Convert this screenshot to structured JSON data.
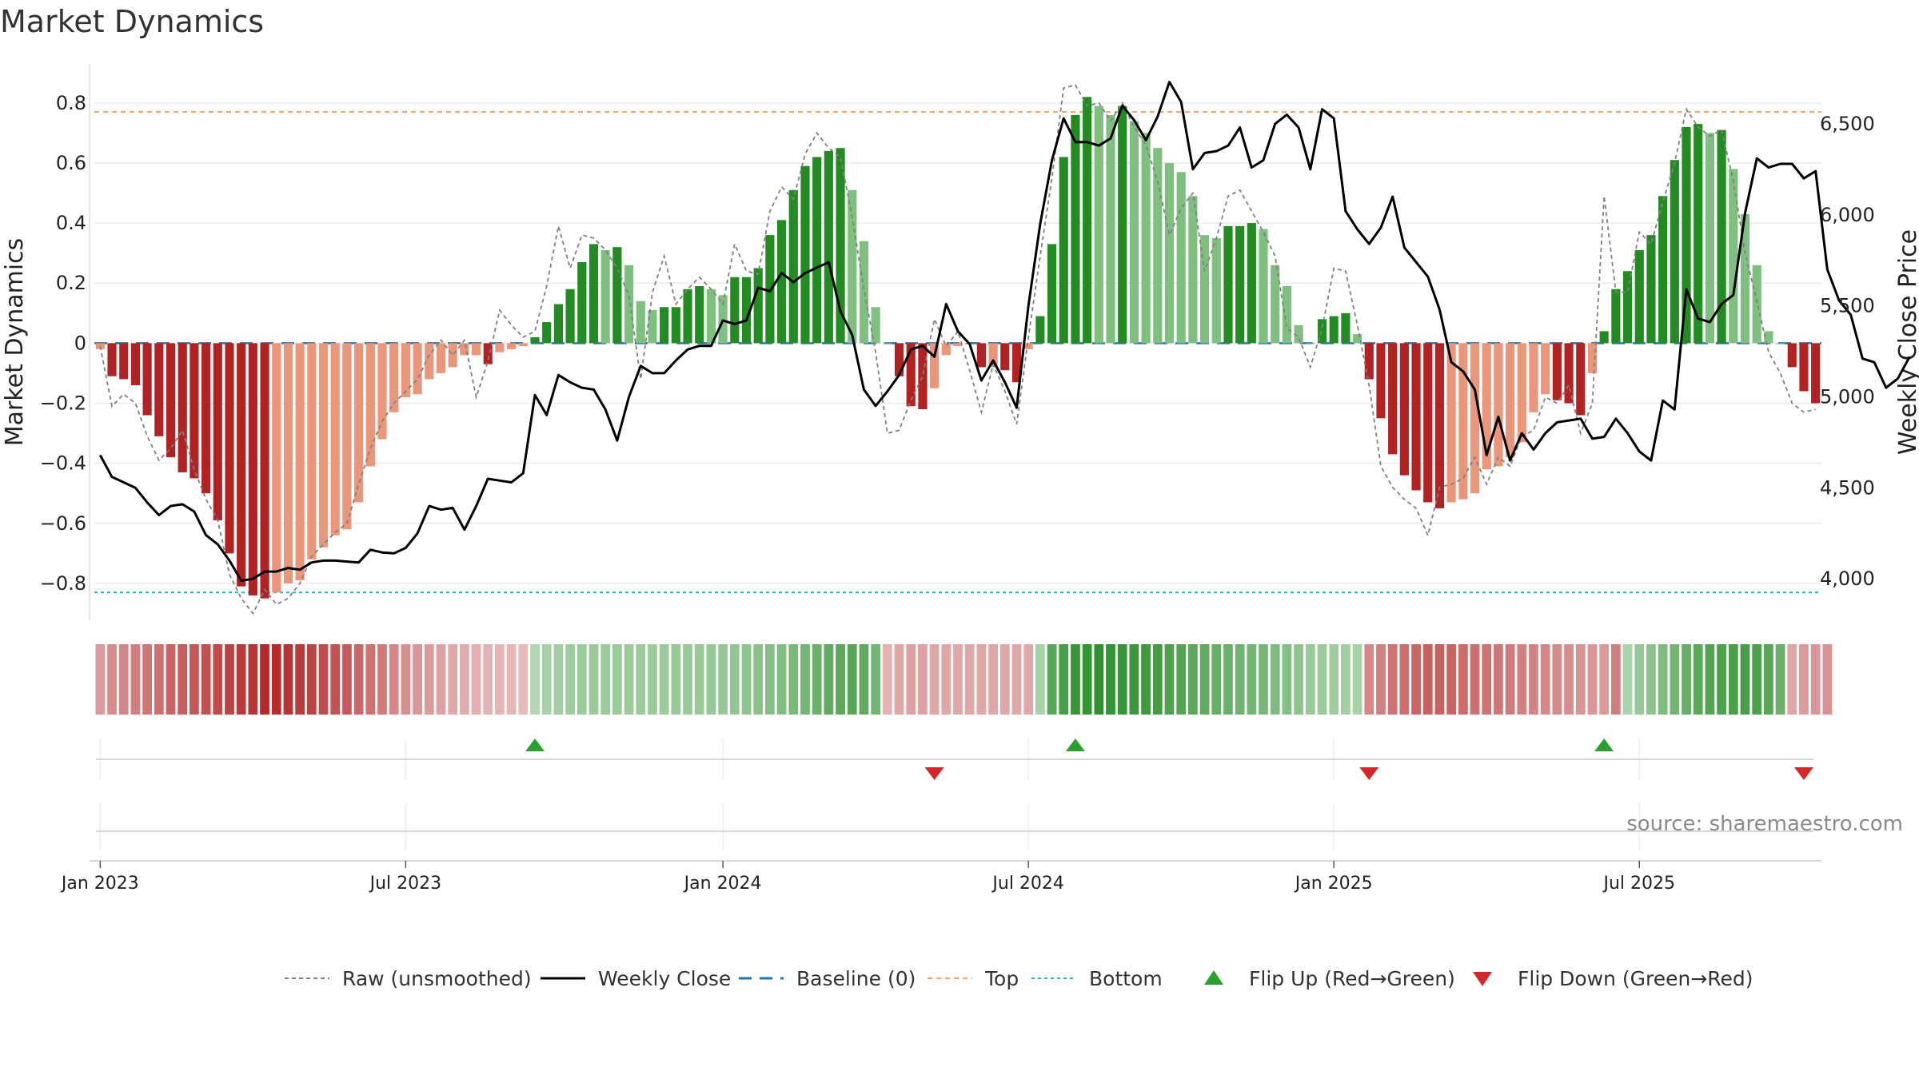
{
  "title": "Market Dynamics",
  "source_note": "source: sharemaestro.com",
  "colors": {
    "strong_green": "#228B22",
    "light_green": "#7FBF7F",
    "strong_red": "#B22222",
    "light_red": "#E9967A",
    "close_line": "#000000",
    "raw_line": "#808080",
    "baseline": "#1F77B4",
    "top": "#F4A460",
    "bottom": "#17BECF",
    "flip_up": "#2CA02C",
    "flip_down": "#D62728"
  },
  "chart_data": {
    "type": "bar",
    "title": "Market Dynamics",
    "xlabel": "",
    "ylabel": "Market Dynamics",
    "y2label": "Weekly Close Price",
    "x_tick_labels": [
      "Jan 2023",
      "Jul 2023",
      "Jan 2024",
      "Jul 2024",
      "Jan 2025",
      "Jul 2025"
    ],
    "y_tick_labels": [
      "−0.8",
      "−0.6",
      "−0.4",
      "−0.2",
      "0",
      "0.2",
      "0.4",
      "0.6",
      "0.8"
    ],
    "y2_tick_labels": [
      "4,000",
      "4,500",
      "5,000",
      "5,500",
      "6,000",
      "6,500"
    ],
    "ylim": [
      -0.92,
      0.93
    ],
    "y2lim": [
      3777,
      6829
    ],
    "top_level": 0.77,
    "bottom_level": -0.83,
    "baseline": 0,
    "dynamics": [
      -0.02,
      -0.11,
      -0.12,
      -0.14,
      -0.24,
      -0.31,
      -0.38,
      -0.43,
      -0.45,
      -0.5,
      -0.59,
      -0.7,
      -0.81,
      -0.84,
      -0.85,
      -0.83,
      -0.8,
      -0.79,
      -0.72,
      -0.68,
      -0.64,
      -0.62,
      -0.53,
      -0.41,
      -0.32,
      -0.23,
      -0.18,
      -0.17,
      -0.12,
      -0.1,
      -0.08,
      -0.04,
      -0.04,
      -0.07,
      -0.03,
      -0.02,
      -0.01,
      0.02,
      0.07,
      0.13,
      0.18,
      0.27,
      0.33,
      0.31,
      0.32,
      0.26,
      0.14,
      0.11,
      0.12,
      0.12,
      0.18,
      0.19,
      0.18,
      0.16,
      0.22,
      0.22,
      0.25,
      0.36,
      0.41,
      0.51,
      0.59,
      0.62,
      0.64,
      0.65,
      0.51,
      0.34,
      0.12,
      0.0,
      -0.11,
      -0.21,
      -0.22,
      -0.15,
      -0.04,
      -0.01,
      0.0,
      -0.08,
      -0.08,
      -0.09,
      -0.13,
      -0.02,
      0.09,
      0.33,
      0.62,
      0.76,
      0.82,
      0.79,
      0.76,
      0.79,
      0.74,
      0.7,
      0.65,
      0.6,
      0.57,
      0.49,
      0.36,
      0.35,
      0.39,
      0.39,
      0.4,
      0.38,
      0.26,
      0.19,
      0.06,
      0.0,
      0.08,
      0.09,
      0.1,
      0.03,
      -0.12,
      -0.25,
      -0.37,
      -0.44,
      -0.49,
      -0.53,
      -0.55,
      -0.53,
      -0.52,
      -0.5,
      -0.42,
      -0.41,
      -0.38,
      -0.33,
      -0.23,
      -0.17,
      -0.19,
      -0.2,
      -0.24,
      -0.1,
      0.04,
      0.18,
      0.24,
      0.31,
      0.36,
      0.49,
      0.61,
      0.72,
      0.73,
      0.7,
      0.71,
      0.58,
      0.43,
      0.26,
      0.04,
      0.0,
      -0.08,
      -0.16,
      -0.2
    ],
    "raw": [
      -0.01,
      -0.21,
      -0.17,
      -0.2,
      -0.31,
      -0.39,
      -0.35,
      -0.29,
      -0.42,
      -0.52,
      -0.59,
      -0.77,
      -0.85,
      -0.9,
      -0.82,
      -0.87,
      -0.85,
      -0.8,
      -0.71,
      -0.67,
      -0.63,
      -0.6,
      -0.47,
      -0.35,
      -0.26,
      -0.2,
      -0.16,
      -0.12,
      -0.04,
      0.01,
      -0.04,
      0.01,
      -0.18,
      -0.06,
      0.11,
      0.06,
      0.02,
      0.04,
      0.19,
      0.39,
      0.25,
      0.36,
      0.35,
      0.31,
      0.25,
      0.16,
      -0.12,
      0.17,
      0.29,
      0.13,
      0.18,
      0.22,
      0.18,
      0.13,
      0.33,
      0.24,
      0.23,
      0.44,
      0.52,
      0.48,
      0.63,
      0.7,
      0.65,
      0.62,
      0.42,
      0.18,
      -0.03,
      -0.3,
      -0.29,
      -0.19,
      -0.11,
      0.08,
      -0.01,
      0.04,
      -0.09,
      -0.23,
      -0.07,
      -0.16,
      -0.27,
      0.02,
      0.29,
      0.55,
      0.85,
      0.86,
      0.79,
      0.8,
      0.74,
      0.8,
      0.72,
      0.66,
      0.54,
      0.36,
      0.45,
      0.5,
      0.24,
      0.35,
      0.49,
      0.51,
      0.44,
      0.37,
      0.29,
      0.05,
      0.02,
      -0.08,
      0.05,
      0.25,
      0.24,
      0.06,
      -0.14,
      -0.41,
      -0.48,
      -0.52,
      -0.55,
      -0.64,
      -0.48,
      -0.47,
      -0.45,
      -0.38,
      -0.47,
      -0.38,
      -0.41,
      -0.31,
      -0.29,
      -0.18,
      -0.2,
      -0.14,
      -0.3,
      -0.2,
      0.49,
      0.17,
      0.17,
      0.37,
      0.33,
      0.47,
      0.6,
      0.78,
      0.72,
      0.69,
      0.71,
      0.54,
      0.3,
      0.14,
      -0.03,
      -0.1,
      -0.2,
      -0.23,
      -0.22
    ],
    "close": [
      4680,
      4560,
      4530,
      4500,
      4420,
      4350,
      4400,
      4410,
      4370,
      4240,
      4190,
      4100,
      3990,
      4000,
      4040,
      4040,
      4060,
      4050,
      4090,
      4100,
      4100,
      4095,
      4090,
      4160,
      4145,
      4140,
      4170,
      4250,
      4400,
      4380,
      4390,
      4270,
      4400,
      4550,
      4540,
      4530,
      4580,
      5010,
      4900,
      5120,
      5080,
      5050,
      5040,
      4930,
      4760,
      5000,
      5170,
      5130,
      5130,
      5200,
      5260,
      5280,
      5280,
      5420,
      5400,
      5420,
      5600,
      5580,
      5680,
      5630,
      5680,
      5710,
      5740,
      5470,
      5340,
      5040,
      4950,
      5030,
      5120,
      5260,
      5280,
      5220,
      5510,
      5360,
      5290,
      5090,
      5200,
      5080,
      4940,
      5500,
      5950,
      6300,
      6530,
      6400,
      6400,
      6380,
      6420,
      6600,
      6520,
      6410,
      6540,
      6730,
      6620,
      6250,
      6340,
      6350,
      6380,
      6480,
      6260,
      6300,
      6500,
      6550,
      6480,
      6250,
      6580,
      6530,
      6020,
      5920,
      5840,
      5930,
      6100,
      5820,
      5740,
      5660,
      5480,
      5190,
      5140,
      5040,
      4680,
      4890,
      4650,
      4800,
      4710,
      4800,
      4860,
      4870,
      4880,
      4770,
      4780,
      4880,
      4800,
      4700,
      4650,
      4980,
      4930,
      5590,
      5430,
      5410,
      5510,
      5560,
      6010,
      6310,
      6260,
      6280,
      6280,
      6200,
      6240,
      5700,
      5530,
      5450,
      5210,
      5190,
      5050,
      5100,
      5220
    ]
  },
  "regime_strip": {
    "label": "regime-strip",
    "values": [
      -0.25,
      -0.33,
      -0.35,
      -0.4,
      -0.44,
      -0.48,
      -0.53,
      -0.57,
      -0.6,
      -0.63,
      -0.67,
      -0.7,
      -0.74,
      -0.78,
      -0.82,
      -0.82,
      -0.78,
      -0.74,
      -0.7,
      -0.66,
      -0.62,
      -0.58,
      -0.52,
      -0.47,
      -0.42,
      -0.36,
      -0.32,
      -0.28,
      -0.25,
      -0.22,
      -0.2,
      -0.18,
      -0.16,
      -0.15,
      -0.13,
      -0.12,
      -0.1,
      0.15,
      0.2,
      0.22,
      0.24,
      0.25,
      0.25,
      0.25,
      0.25,
      0.26,
      0.26,
      0.26,
      0.26,
      0.27,
      0.27,
      0.27,
      0.28,
      0.29,
      0.3,
      0.32,
      0.34,
      0.36,
      0.39,
      0.42,
      0.46,
      0.5,
      0.55,
      0.58,
      0.6,
      0.55,
      0.45,
      -0.15,
      -0.2,
      -0.22,
      -0.22,
      -0.2,
      -0.2,
      -0.2,
      -0.2,
      -0.2,
      -0.2,
      -0.2,
      -0.2,
      -0.2,
      0.2,
      0.6,
      0.68,
      0.75,
      0.78,
      0.8,
      0.78,
      0.76,
      0.74,
      0.72,
      0.7,
      0.66,
      0.62,
      0.58,
      0.55,
      0.52,
      0.5,
      0.48,
      0.46,
      0.44,
      0.4,
      0.36,
      0.32,
      0.28,
      0.26,
      0.24,
      0.22,
      0.2,
      -0.35,
      -0.4,
      -0.45,
      -0.48,
      -0.52,
      -0.55,
      -0.55,
      -0.53,
      -0.5,
      -0.48,
      -0.46,
      -0.44,
      -0.42,
      -0.4,
      -0.38,
      -0.36,
      -0.34,
      -0.32,
      -0.3,
      -0.28,
      -0.26,
      -0.4,
      0.18,
      0.28,
      0.34,
      0.4,
      0.46,
      0.52,
      0.58,
      0.62,
      0.66,
      0.68,
      0.68,
      0.66,
      0.6,
      0.5,
      -0.2,
      -0.25,
      -0.28,
      -0.3
    ]
  },
  "flips": {
    "up": [
      37,
      83,
      128
    ],
    "down": [
      71,
      108,
      145
    ]
  },
  "legend": [
    {
      "kind": "dashed",
      "label": "Raw (unsmoothed)"
    },
    {
      "kind": "solid",
      "label": "Weekly Close"
    },
    {
      "kind": "baseline",
      "label": "Baseline (0)"
    },
    {
      "kind": "top",
      "label": "Top"
    },
    {
      "kind": "bottom",
      "label": "Bottom"
    },
    {
      "kind": "flip-up",
      "label": "Flip Up (Red→Green)"
    },
    {
      "kind": "flip-down",
      "label": "Flip Down (Green→Red)"
    }
  ]
}
